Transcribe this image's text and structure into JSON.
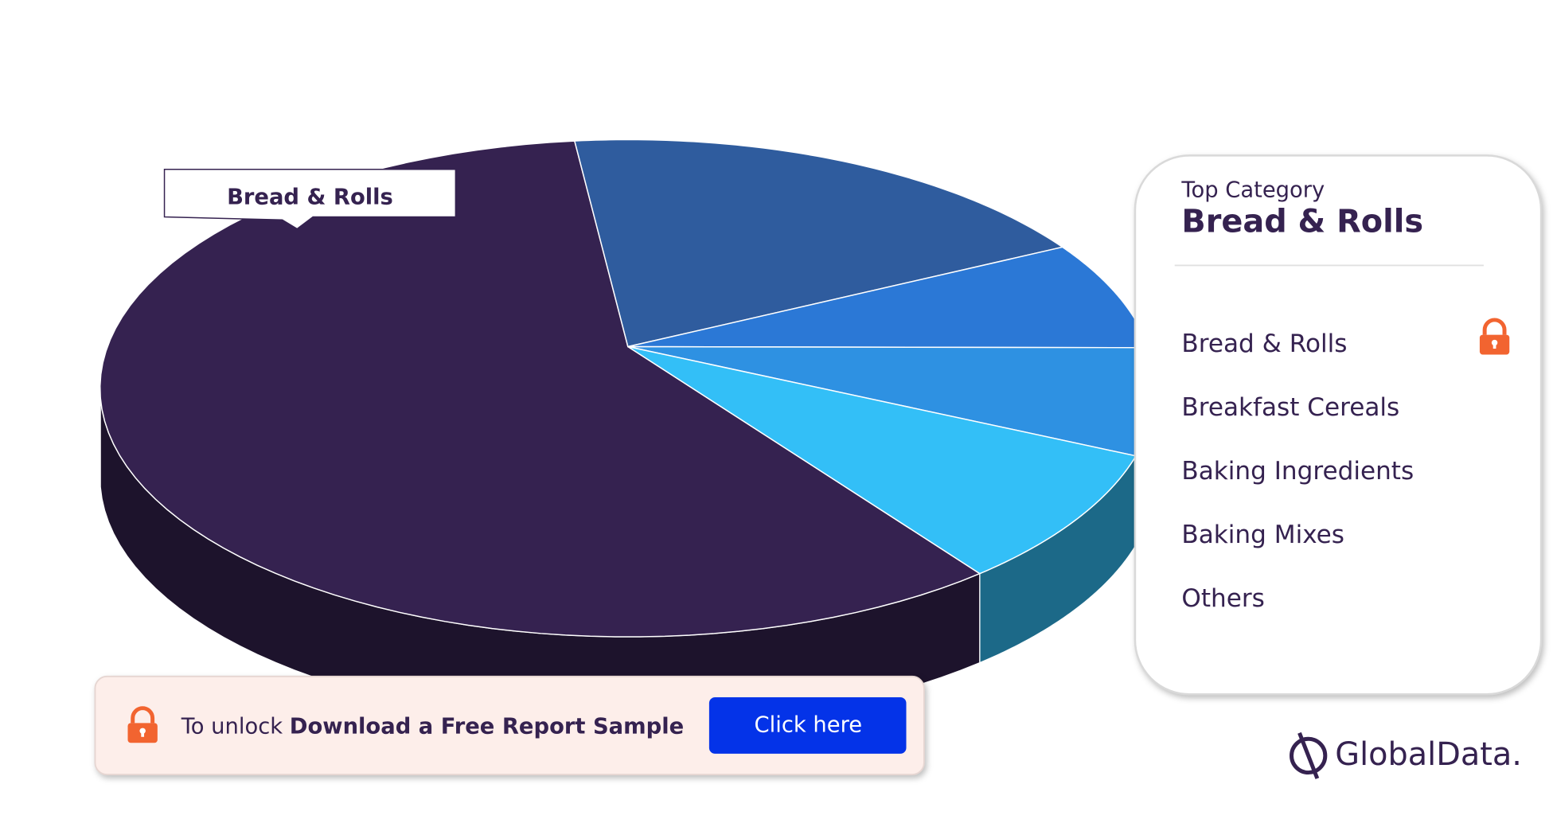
{
  "chart_data": {
    "type": "pie",
    "categories": [
      "Bread & Rolls",
      "Breakfast Cereals",
      "Baking Ingredients",
      "Baking Mixes",
      "Others"
    ],
    "values": [
      60,
      17,
      7,
      7,
      9
    ],
    "colors": [
      "#352250",
      "#2f5c9e",
      "#2b78d6",
      "#2e91e2",
      "#33bff7"
    ]
  },
  "panel": {
    "heading": "Top Category"
  },
  "banner": {
    "prefix": "To unlock",
    "highlight": "Download a Free Report Sample",
    "button": "Click here"
  },
  "logo": "GlobalData."
}
